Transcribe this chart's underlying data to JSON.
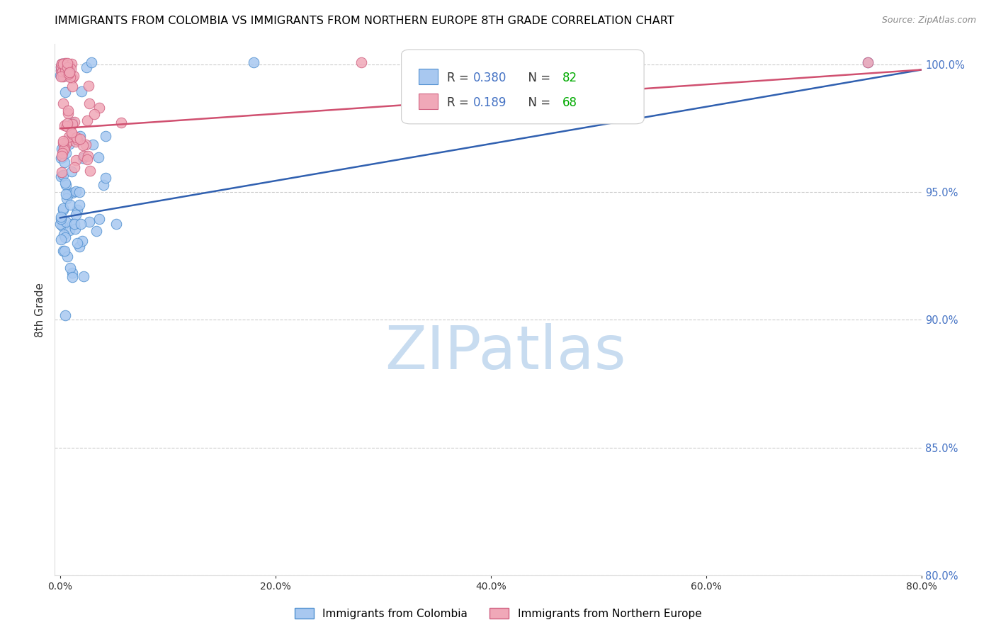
{
  "title": "IMMIGRANTS FROM COLOMBIA VS IMMIGRANTS FROM NORTHERN EUROPE 8TH GRADE CORRELATION CHART",
  "source": "Source: ZipAtlas.com",
  "xlabel_colombia": "Immigrants from Colombia",
  "xlabel_northern": "Immigrants from Northern Europe",
  "ylabel": "8th Grade",
  "xlim": [
    -0.005,
    0.8
  ],
  "ylim": [
    0.8,
    1.008
  ],
  "yticks": [
    0.8,
    0.85,
    0.9,
    0.95,
    1.0
  ],
  "xticks": [
    0.0,
    0.2,
    0.4,
    0.6,
    0.8
  ],
  "colombia_fill": "#A8C8F0",
  "colombia_edge": "#5090D0",
  "northern_fill": "#F0A8B8",
  "northern_edge": "#D06080",
  "colombia_line_color": "#3060B0",
  "northern_line_color": "#D05070",
  "R_colombia": 0.38,
  "N_colombia": 82,
  "R_northern": 0.189,
  "N_northern": 68,
  "legend_R_color": "#4472C4",
  "legend_N_color": "#00AA00",
  "watermark_color": "#C8DCF0",
  "title_fontsize": 11.5,
  "axis_label_color": "#4472C4"
}
